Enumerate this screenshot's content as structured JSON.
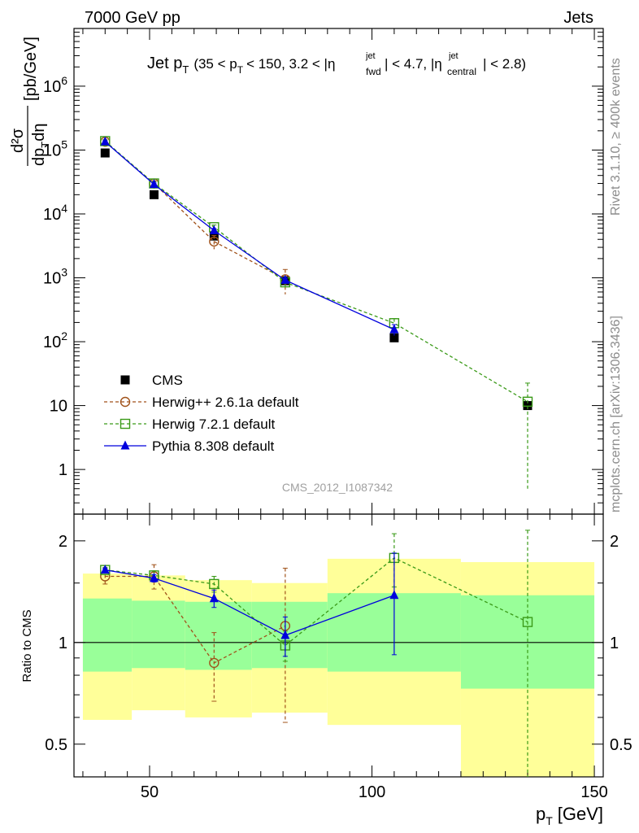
{
  "header": {
    "left": "7000 GeV pp",
    "right": "Jets"
  },
  "side_labels": {
    "upper": "Rivet 3.1.10, ≥ 400k events",
    "lower": "mcplots.cern.ch [arXiv:1306.3436]"
  },
  "watermark": "CMS_2012_I1087342",
  "colors": {
    "cms": "#000000",
    "herwigpp": "#a0521a",
    "herwig7": "#3a9a18",
    "pythia": "#0000dd",
    "band_inner": "#99ff99",
    "band_outer": "#ffff99"
  },
  "chart_data": [
    {
      "type": "scatter",
      "panel": "main",
      "title": "Jet p_T (35 < p_T < 150, 3.2 < |η_fwd^jet| < 4.7, |η_central^jet| < 2.8)",
      "title_parts": {
        "main": "Jet p",
        "main_sub": "T",
        "range_a": "(35 < p",
        "range_a_sub": "T",
        "range_b": "< 150, 3.2 < |η",
        "eta_fwd_sup": "jet",
        "eta_fwd_sub": "fwd",
        "range_c": "| < 4.7, |η",
        "eta_c_sup": "jet",
        "eta_c_sub": "central",
        "range_d": "| < 2.8)"
      },
      "ylabel_parts": {
        "num": "d²σ",
        "den": "dp",
        "den_sub": "T",
        "den_tail": "dη",
        "units": "[pb/GeV]"
      },
      "yscale": "log",
      "ylim": [
        0.2,
        8000000
      ],
      "xlim": [
        33,
        152
      ],
      "ytick_labels": [
        "1",
        "10",
        "10²",
        "10³",
        "10⁴",
        "10⁵",
        "10⁶"
      ],
      "ytick_values": [
        1,
        10,
        100,
        1000,
        10000,
        100000,
        1000000
      ],
      "series": [
        {
          "name": "CMS",
          "marker": "filled-square",
          "x": [
            40,
            51,
            64.5,
            80.5,
            105,
            135
          ],
          "y": [
            90000,
            20000,
            4500,
            900,
            115,
            10
          ]
        },
        {
          "name": "Herwig++ 2.6.1a default",
          "marker": "open-circle",
          "line": "dashed",
          "x": [
            40,
            51,
            64.5,
            80.5,
            105
          ],
          "y": [
            135000,
            30000,
            3700,
            950,
            null
          ],
          "yerr": [
            10000,
            3000,
            900,
            400,
            null
          ]
        },
        {
          "name": "Herwig 7.2.1 default",
          "marker": "open-square",
          "line": "dashed",
          "x": [
            40,
            51,
            64.5,
            80.5,
            105,
            135
          ],
          "y": [
            138000,
            30000,
            6200,
            850,
            195,
            11.5
          ],
          "yerr": [
            6000,
            2000,
            500,
            150,
            35,
            11
          ]
        },
        {
          "name": "Pythia 8.308 default",
          "marker": "filled-triangle",
          "line": "solid",
          "x": [
            40,
            51,
            64.5,
            80.5,
            105
          ],
          "y": [
            135000,
            29000,
            5500,
            920,
            155
          ],
          "yerr": [
            4000,
            1500,
            400,
            80,
            30
          ]
        }
      ]
    },
    {
      "type": "scatter",
      "panel": "ratio",
      "ylabel": "Ratio to CMS",
      "yscale": "log",
      "ylim": [
        0.4,
        2.4
      ],
      "xlim": [
        33,
        152
      ],
      "xlabel_parts": {
        "main": "p",
        "sub": "T",
        "units": "[GeV]"
      },
      "xtick_labels": [
        "50",
        "100",
        "150"
      ],
      "xtick_values": [
        50,
        100,
        150
      ],
      "ytick_labels": [
        "0.5",
        "1",
        "2"
      ],
      "ytick_values": [
        0.5,
        1,
        2
      ],
      "bands": [
        {
          "x0": 35,
          "x1": 46,
          "inner": [
            0.82,
            1.35
          ],
          "outer": [
            0.59,
            1.6
          ]
        },
        {
          "x0": 46,
          "x1": 58,
          "inner": [
            0.84,
            1.33
          ],
          "outer": [
            0.63,
            1.58
          ]
        },
        {
          "x0": 58,
          "x1": 73,
          "inner": [
            0.83,
            1.32
          ],
          "outer": [
            0.6,
            1.53
          ]
        },
        {
          "x0": 73,
          "x1": 90,
          "inner": [
            0.84,
            1.32
          ],
          "outer": [
            0.62,
            1.5
          ]
        },
        {
          "x0": 90,
          "x1": 120,
          "inner": [
            0.82,
            1.4
          ],
          "outer": [
            0.57,
            1.77
          ]
        },
        {
          "x0": 120,
          "x1": 150,
          "inner": [
            0.73,
            1.38
          ],
          "outer": [
            0.3,
            1.73
          ]
        }
      ],
      "series": [
        {
          "name": "Herwig++ 2.6.1a default",
          "x": [
            40,
            51,
            64.5,
            80.5
          ],
          "y": [
            1.57,
            1.57,
            0.87,
            1.12
          ],
          "yerr": [
            0.08,
            0.13,
            0.2,
            0.54
          ]
        },
        {
          "name": "Herwig 7.2.1 default",
          "x": [
            40,
            51,
            64.5,
            80.5,
            105,
            135
          ],
          "y": [
            1.64,
            1.58,
            1.49,
            0.98,
            1.78,
            1.15
          ],
          "yerr": [
            0.03,
            0.05,
            0.08,
            0.1,
            0.32,
            1.0
          ]
        },
        {
          "name": "Pythia 8.308 default",
          "x": [
            40,
            51,
            64.5,
            80.5,
            105
          ],
          "y": [
            1.64,
            1.55,
            1.35,
            1.05,
            1.38
          ],
          "yerr": [
            0.02,
            0.04,
            0.08,
            0.14,
            0.46
          ]
        }
      ]
    }
  ]
}
